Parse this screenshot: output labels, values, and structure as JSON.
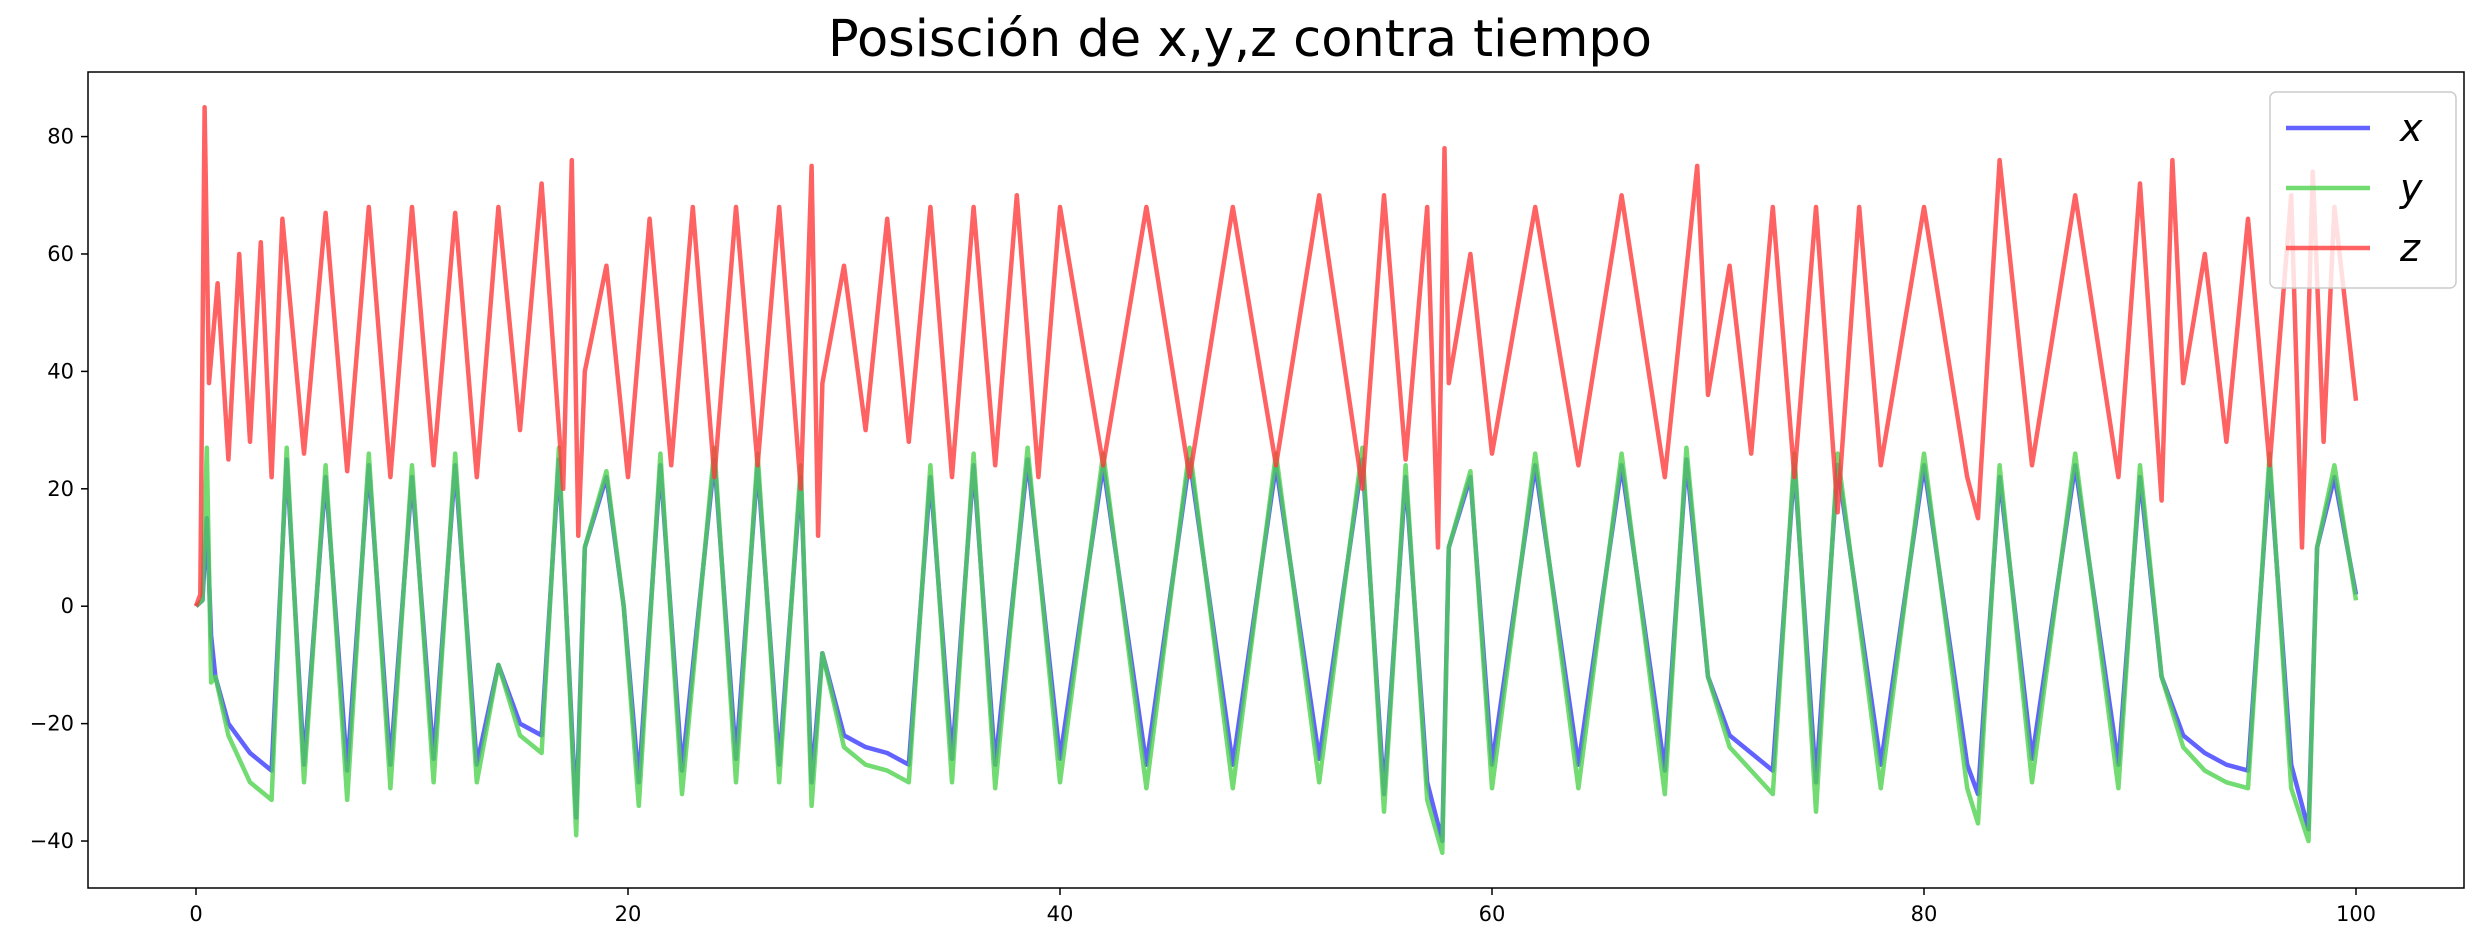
{
  "chart_data": {
    "type": "line",
    "title": "Posisción de x,y,z contra tiempo",
    "xlabel": "",
    "ylabel": "",
    "xlim": [
      -5,
      105
    ],
    "ylim": [
      -48,
      91
    ],
    "xticks": [
      0,
      20,
      40,
      60,
      80,
      100
    ],
    "yticks": [
      -40,
      -20,
      0,
      20,
      40,
      60,
      80
    ],
    "grid": false,
    "legend": "top-right",
    "x_range": [
      0,
      100
    ],
    "series": [
      {
        "name": "x",
        "color": "#3b3bff",
        "values_by_segment": "x approximately equals y (lines overlap)",
        "points": [
          [
            0,
            0
          ],
          [
            0.3,
            1
          ],
          [
            0.5,
            15
          ],
          [
            0.7,
            -5
          ],
          [
            0.9,
            -12
          ],
          [
            1.5,
            -20
          ],
          [
            2.5,
            -25
          ],
          [
            3.5,
            -28
          ],
          [
            4.2,
            25
          ],
          [
            5.0,
            -27
          ],
          [
            6.0,
            22
          ],
          [
            7.0,
            -28
          ],
          [
            8.0,
            24
          ],
          [
            9.0,
            -27
          ],
          [
            10.0,
            22
          ],
          [
            11.0,
            -26
          ],
          [
            12.0,
            24
          ],
          [
            13.0,
            -27
          ],
          [
            14.0,
            -10
          ],
          [
            15.0,
            -20
          ],
          [
            16.0,
            -22
          ],
          [
            16.8,
            25
          ],
          [
            17.6,
            -36
          ],
          [
            18.0,
            10
          ],
          [
            19.0,
            22
          ],
          [
            19.8,
            0
          ],
          [
            20.5,
            -30
          ],
          [
            21.5,
            24
          ],
          [
            22.5,
            -28
          ],
          [
            24.0,
            25
          ],
          [
            25.0,
            -26
          ],
          [
            26.0,
            24
          ],
          [
            27.0,
            -27
          ],
          [
            28.0,
            22
          ],
          [
            28.5,
            -30
          ],
          [
            29.0,
            -8
          ],
          [
            30.0,
            -22
          ],
          [
            31.0,
            -24
          ],
          [
            32.0,
            -25
          ],
          [
            33.0,
            -27
          ],
          [
            34.0,
            22
          ],
          [
            35.0,
            -26
          ],
          [
            36.0,
            24
          ],
          [
            37.0,
            -27
          ],
          [
            38.5,
            25
          ],
          [
            40.0,
            -26
          ],
          [
            42.0,
            24
          ],
          [
            44.0,
            -27
          ],
          [
            46.0,
            25
          ],
          [
            48.0,
            -27
          ],
          [
            50.0,
            24
          ],
          [
            52.0,
            -26
          ],
          [
            54.0,
            25
          ],
          [
            55.0,
            -32
          ],
          [
            56.0,
            22
          ],
          [
            57.0,
            -30
          ],
          [
            57.7,
            -40
          ],
          [
            58.0,
            10
          ],
          [
            59.0,
            22
          ],
          [
            60.0,
            -27
          ],
          [
            62.0,
            24
          ],
          [
            64.0,
            -27
          ],
          [
            66.0,
            24
          ],
          [
            68.0,
            -28
          ],
          [
            69.0,
            25
          ],
          [
            70.0,
            -12
          ],
          [
            71.0,
            -22
          ],
          [
            72.0,
            -25
          ],
          [
            73.0,
            -28
          ],
          [
            74.0,
            24
          ],
          [
            75.0,
            -30
          ],
          [
            76.0,
            24
          ],
          [
            78.0,
            -27
          ],
          [
            80.0,
            24
          ],
          [
            82.0,
            -27
          ],
          [
            82.5,
            -32
          ],
          [
            83.5,
            22
          ],
          [
            85.0,
            -26
          ],
          [
            87.0,
            24
          ],
          [
            89.0,
            -27
          ],
          [
            90.0,
            22
          ],
          [
            91.0,
            -12
          ],
          [
            92.0,
            -22
          ],
          [
            93.0,
            -25
          ],
          [
            94.0,
            -27
          ],
          [
            95.0,
            -28
          ],
          [
            96.0,
            24
          ],
          [
            97.0,
            -27
          ],
          [
            97.8,
            -38
          ],
          [
            98.2,
            10
          ],
          [
            99.0,
            22
          ],
          [
            100,
            2
          ]
        ]
      },
      {
        "name": "y",
        "color": "#4fd24f",
        "points": [
          [
            0,
            0
          ],
          [
            0.3,
            1
          ],
          [
            0.5,
            27
          ],
          [
            0.7,
            -13
          ],
          [
            0.9,
            -12
          ],
          [
            1.5,
            -22
          ],
          [
            2.5,
            -30
          ],
          [
            3.5,
            -33
          ],
          [
            4.2,
            27
          ],
          [
            5.0,
            -30
          ],
          [
            6.0,
            24
          ],
          [
            7.0,
            -33
          ],
          [
            8.0,
            26
          ],
          [
            9.0,
            -31
          ],
          [
            10.0,
            24
          ],
          [
            11.0,
            -30
          ],
          [
            12.0,
            26
          ],
          [
            13.0,
            -30
          ],
          [
            14.0,
            -10
          ],
          [
            15.0,
            -22
          ],
          [
            16.0,
            -25
          ],
          [
            16.8,
            27
          ],
          [
            17.6,
            -39
          ],
          [
            18.0,
            10
          ],
          [
            19.0,
            23
          ],
          [
            19.8,
            0
          ],
          [
            20.5,
            -34
          ],
          [
            21.5,
            26
          ],
          [
            22.5,
            -32
          ],
          [
            24.0,
            27
          ],
          [
            25.0,
            -30
          ],
          [
            26.0,
            26
          ],
          [
            27.0,
            -30
          ],
          [
            28.0,
            24
          ],
          [
            28.5,
            -34
          ],
          [
            29.0,
            -8
          ],
          [
            30.0,
            -24
          ],
          [
            31.0,
            -27
          ],
          [
            32.0,
            -28
          ],
          [
            33.0,
            -30
          ],
          [
            34.0,
            24
          ],
          [
            35.0,
            -30
          ],
          [
            36.0,
            26
          ],
          [
            37.0,
            -31
          ],
          [
            38.5,
            27
          ],
          [
            40.0,
            -30
          ],
          [
            42.0,
            26
          ],
          [
            44.0,
            -31
          ],
          [
            46.0,
            27
          ],
          [
            48.0,
            -31
          ],
          [
            50.0,
            26
          ],
          [
            52.0,
            -30
          ],
          [
            54.0,
            27
          ],
          [
            55.0,
            -35
          ],
          [
            56.0,
            24
          ],
          [
            57.0,
            -33
          ],
          [
            57.7,
            -42
          ],
          [
            58.0,
            10
          ],
          [
            59.0,
            23
          ],
          [
            60.0,
            -31
          ],
          [
            62.0,
            26
          ],
          [
            64.0,
            -31
          ],
          [
            66.0,
            26
          ],
          [
            68.0,
            -32
          ],
          [
            69.0,
            27
          ],
          [
            70.0,
            -12
          ],
          [
            71.0,
            -24
          ],
          [
            72.0,
            -28
          ],
          [
            73.0,
            -32
          ],
          [
            74.0,
            26
          ],
          [
            75.0,
            -35
          ],
          [
            76.0,
            26
          ],
          [
            78.0,
            -31
          ],
          [
            80.0,
            26
          ],
          [
            82.0,
            -31
          ],
          [
            82.5,
            -37
          ],
          [
            83.5,
            24
          ],
          [
            85.0,
            -30
          ],
          [
            87.0,
            26
          ],
          [
            89.0,
            -31
          ],
          [
            90.0,
            24
          ],
          [
            91.0,
            -12
          ],
          [
            92.0,
            -24
          ],
          [
            93.0,
            -28
          ],
          [
            94.0,
            -30
          ],
          [
            95.0,
            -31
          ],
          [
            96.0,
            26
          ],
          [
            97.0,
            -31
          ],
          [
            97.8,
            -40
          ],
          [
            98.2,
            10
          ],
          [
            99.0,
            24
          ],
          [
            100,
            1
          ]
        ]
      },
      {
        "name": "z",
        "color": "#ff3b3b",
        "points": [
          [
            0,
            0
          ],
          [
            0.2,
            2
          ],
          [
            0.4,
            85
          ],
          [
            0.6,
            38
          ],
          [
            1.0,
            55
          ],
          [
            1.5,
            25
          ],
          [
            2.0,
            60
          ],
          [
            2.5,
            28
          ],
          [
            3.0,
            62
          ],
          [
            3.5,
            22
          ],
          [
            4.0,
            66
          ],
          [
            5.0,
            26
          ],
          [
            6.0,
            67
          ],
          [
            7.0,
            23
          ],
          [
            8.0,
            68
          ],
          [
            9.0,
            22
          ],
          [
            10.0,
            68
          ],
          [
            11.0,
            24
          ],
          [
            12.0,
            67
          ],
          [
            13.0,
            22
          ],
          [
            14.0,
            68
          ],
          [
            15.0,
            30
          ],
          [
            16.0,
            72
          ],
          [
            17.0,
            20
          ],
          [
            17.4,
            76
          ],
          [
            17.7,
            12
          ],
          [
            18.0,
            40
          ],
          [
            19.0,
            58
          ],
          [
            20.0,
            22
          ],
          [
            21.0,
            66
          ],
          [
            22.0,
            24
          ],
          [
            23.0,
            68
          ],
          [
            24.0,
            22
          ],
          [
            25.0,
            68
          ],
          [
            26.0,
            24
          ],
          [
            27.0,
            68
          ],
          [
            28.0,
            20
          ],
          [
            28.5,
            75
          ],
          [
            28.8,
            12
          ],
          [
            29.0,
            38
          ],
          [
            30.0,
            58
          ],
          [
            31.0,
            30
          ],
          [
            32.0,
            66
          ],
          [
            33.0,
            28
          ],
          [
            34.0,
            68
          ],
          [
            35.0,
            22
          ],
          [
            36.0,
            68
          ],
          [
            37.0,
            24
          ],
          [
            38.0,
            70
          ],
          [
            39.0,
            22
          ],
          [
            40.0,
            68
          ],
          [
            42.0,
            24
          ],
          [
            44.0,
            68
          ],
          [
            46.0,
            22
          ],
          [
            48.0,
            68
          ],
          [
            50.0,
            24
          ],
          [
            52.0,
            70
          ],
          [
            54.0,
            20
          ],
          [
            55.0,
            70
          ],
          [
            56.0,
            25
          ],
          [
            57.0,
            68
          ],
          [
            57.5,
            10
          ],
          [
            57.8,
            78
          ],
          [
            58.0,
            38
          ],
          [
            59.0,
            60
          ],
          [
            60.0,
            26
          ],
          [
            62.0,
            68
          ],
          [
            64.0,
            24
          ],
          [
            66.0,
            70
          ],
          [
            68.0,
            22
          ],
          [
            69.5,
            75
          ],
          [
            70.0,
            36
          ],
          [
            71.0,
            58
          ],
          [
            72.0,
            26
          ],
          [
            73.0,
            68
          ],
          [
            74.0,
            22
          ],
          [
            75.0,
            68
          ],
          [
            76.0,
            16
          ],
          [
            77.0,
            68
          ],
          [
            78.0,
            24
          ],
          [
            80.0,
            68
          ],
          [
            82.0,
            22
          ],
          [
            82.5,
            15
          ],
          [
            83.5,
            76
          ],
          [
            85.0,
            24
          ],
          [
            87.0,
            70
          ],
          [
            89.0,
            22
          ],
          [
            90.0,
            72
          ],
          [
            91.0,
            18
          ],
          [
            91.5,
            76
          ],
          [
            92.0,
            38
          ],
          [
            93.0,
            60
          ],
          [
            94.0,
            28
          ],
          [
            95.0,
            66
          ],
          [
            96.0,
            24
          ],
          [
            97.0,
            70
          ],
          [
            97.5,
            10
          ],
          [
            98.0,
            74
          ],
          [
            98.5,
            28
          ],
          [
            99.0,
            68
          ],
          [
            100,
            35
          ]
        ]
      }
    ]
  }
}
